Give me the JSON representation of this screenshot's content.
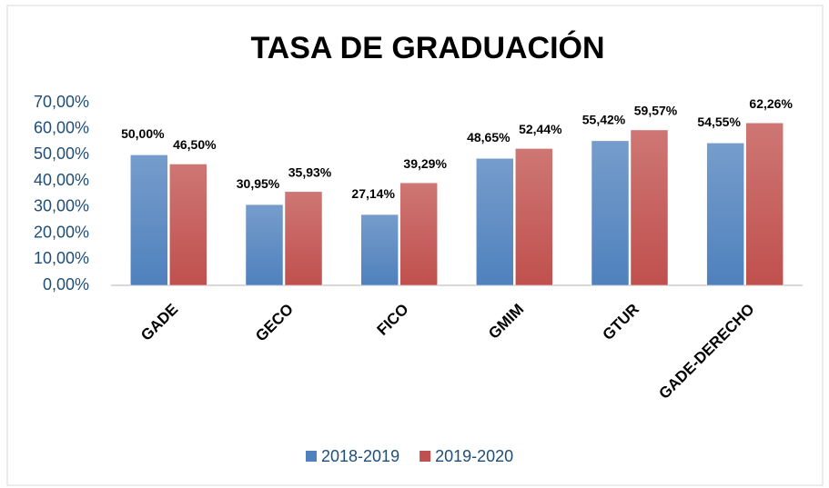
{
  "chart_data": {
    "type": "bar",
    "title": "TASA DE GRADUACIÓN",
    "categories": [
      "GADE",
      "GECO",
      "FICO",
      "GMIM",
      "GTUR",
      "GADE-DERECHO"
    ],
    "series": [
      {
        "name": "2018-2019",
        "color": "#4f81bd",
        "values": [
          50,
          30.95,
          27.14,
          48.65,
          55.42,
          54.55
        ],
        "value_labels": [
          "50,00%",
          "30,95%",
          "27,14%",
          "48,65%",
          "55,42%",
          "54,55%"
        ]
      },
      {
        "name": "2019-2020",
        "color": "#c0504d",
        "values": [
          46.5,
          35.93,
          39.29,
          52.44,
          59.57,
          62.26
        ],
        "value_labels": [
          "46,50%",
          "35,93%",
          "39,29%",
          "52,44%",
          "59,57%",
          "62,26%"
        ]
      }
    ],
    "ylim": [
      0,
      70
    ],
    "yticks": [
      {
        "value": 0,
        "label": "0,00%"
      },
      {
        "value": 10,
        "label": "10,00%"
      },
      {
        "value": 20,
        "label": "20,00%"
      },
      {
        "value": 30,
        "label": "30,00%"
      },
      {
        "value": 40,
        "label": "40,00%"
      },
      {
        "value": 50,
        "label": "50,00%"
      },
      {
        "value": 60,
        "label": "60,00%"
      },
      {
        "value": 70,
        "label": "70,00%"
      }
    ],
    "grid": false,
    "legend": "bottom"
  }
}
